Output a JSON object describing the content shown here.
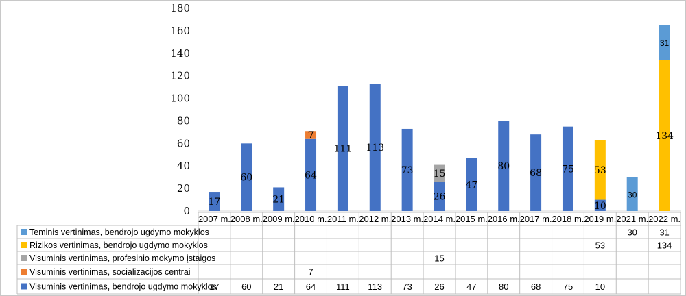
{
  "chart_data": {
    "type": "bar",
    "stacked": true,
    "categories": [
      "2007 m.",
      "2008 m.",
      "2009 m.",
      "2010  m.",
      "2011 m.",
      "2012 m.",
      "2013 m.",
      "2014 m.",
      "2015 m.",
      "2016 m.",
      "2017 m.",
      "2018 m.",
      "2019  m.",
      "2021 m.",
      "2022 m."
    ],
    "ylim": [
      0,
      180
    ],
    "yticks": [
      0,
      20,
      40,
      60,
      80,
      100,
      120,
      140,
      160,
      180
    ],
    "grid": false,
    "legend_placement": "data table below chart",
    "series": [
      {
        "name": "Visuminis vertinimas, bendrojo ugdymo mokyklos",
        "color": "#4472C4",
        "values": [
          17,
          60,
          21,
          64,
          111,
          113,
          73,
          26,
          47,
          80,
          68,
          75,
          10,
          null,
          null
        ]
      },
      {
        "name": "Visuminis vertinimas, socializacijos centrai",
        "color": "#ED7D31",
        "values": [
          null,
          null,
          null,
          7,
          null,
          null,
          null,
          null,
          null,
          null,
          null,
          null,
          null,
          null,
          null
        ]
      },
      {
        "name": "Visuminis vertinimas, profesinio mokymo įstaigos",
        "color": "#A5A5A5",
        "values": [
          null,
          null,
          null,
          null,
          null,
          null,
          null,
          15,
          null,
          null,
          null,
          null,
          null,
          null,
          null
        ]
      },
      {
        "name": "Rizikos vertinimas, bendrojo ugdymo mokyklos",
        "color": "#FFC000",
        "values": [
          null,
          null,
          null,
          null,
          null,
          null,
          null,
          null,
          null,
          null,
          null,
          null,
          53,
          null,
          134
        ]
      },
      {
        "name": "Teminis vertinimas, bendrojo ugdymo mokyklos",
        "color": "#5B9BD5",
        "values": [
          null,
          null,
          null,
          null,
          null,
          null,
          null,
          null,
          null,
          null,
          null,
          null,
          null,
          30,
          31
        ]
      }
    ]
  }
}
